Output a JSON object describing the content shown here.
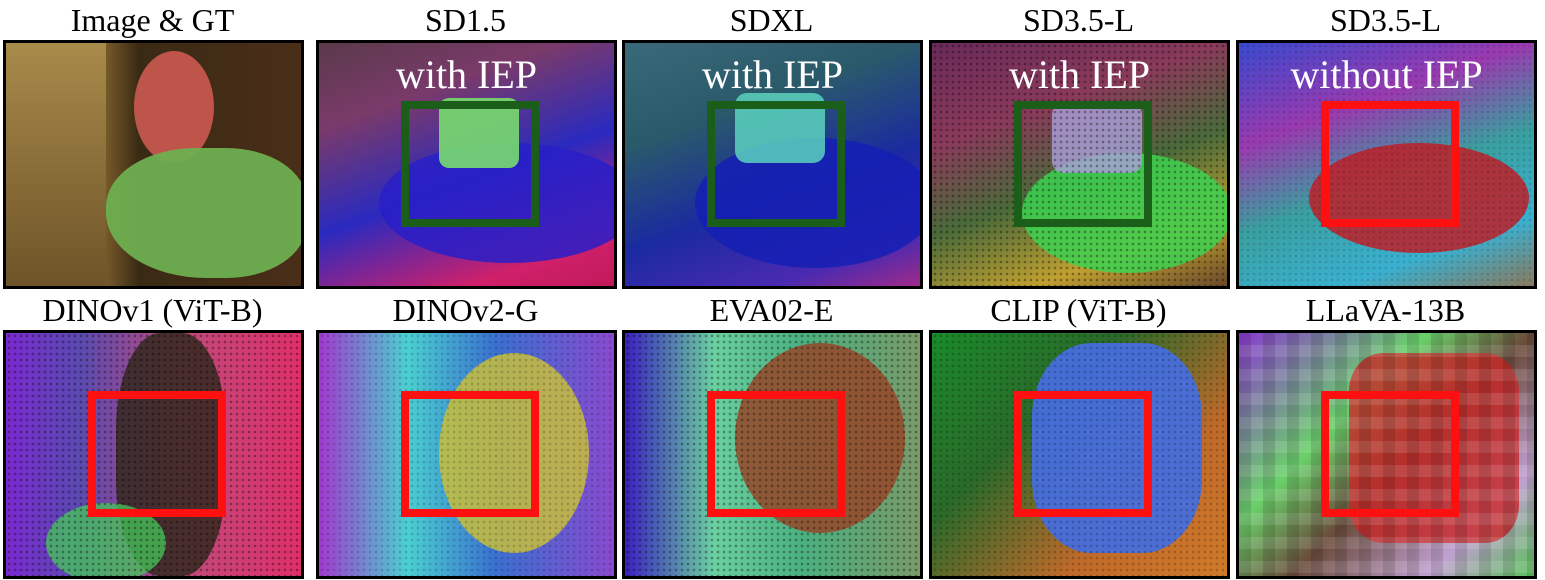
{
  "panels": [
    {
      "title": "Image & GT",
      "overlay": "",
      "box": ""
    },
    {
      "title": "SD1.5",
      "overlay": "with IEP",
      "box": "#1a5e1a"
    },
    {
      "title": "SDXL",
      "overlay": "with IEP",
      "box": "#1a5e1a"
    },
    {
      "title": "SD3.5-L",
      "overlay": "with IEP",
      "box": "#1a5e1a"
    },
    {
      "title": "SD3.5-L",
      "overlay": "without IEP",
      "box": "#ff1010"
    },
    {
      "title": "DINOv1 (ViT-B)",
      "overlay": "",
      "box": "#ff1010"
    },
    {
      "title": "DINOv2-G",
      "overlay": "",
      "box": "#ff1010"
    },
    {
      "title": "EVA02-E",
      "overlay": "",
      "box": "#ff1010"
    },
    {
      "title": "CLIP (ViT-B)",
      "overlay": "",
      "box": "#ff1010"
    },
    {
      "title": "LLaVA-13B",
      "overlay": "",
      "box": "#ff1010"
    }
  ]
}
